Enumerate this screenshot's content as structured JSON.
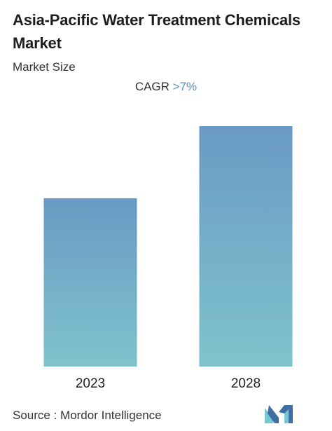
{
  "header": {
    "title": "Asia-Pacific Water Treatment Chemicals Market",
    "subtitle": "Market Size"
  },
  "cagr": {
    "label": "CAGR",
    "value": ">7%"
  },
  "chart_data": {
    "type": "bar",
    "categories": [
      "2023",
      "2028"
    ],
    "values": [
      0.7,
      1.0
    ],
    "title": "Asia-Pacific Water Treatment Chemicals Market",
    "subtitle": "Market Size",
    "xlabel": "",
    "ylabel": "",
    "ylim": [
      0,
      1.0
    ],
    "grid": false,
    "legend": "none",
    "annotation": "CAGR >7%",
    "colors": {
      "bar_top": "#6a9ac4",
      "bar_bottom": "#7fc3cd"
    }
  },
  "footer": {
    "source": "Source :  Mordor Intelligence",
    "logo_icon": "mordor-intelligence-logo-icon"
  },
  "colors": {
    "accent": "#5b8fbf",
    "logo_light": "#78c8cf",
    "logo_dark": "#3e6fa6"
  }
}
